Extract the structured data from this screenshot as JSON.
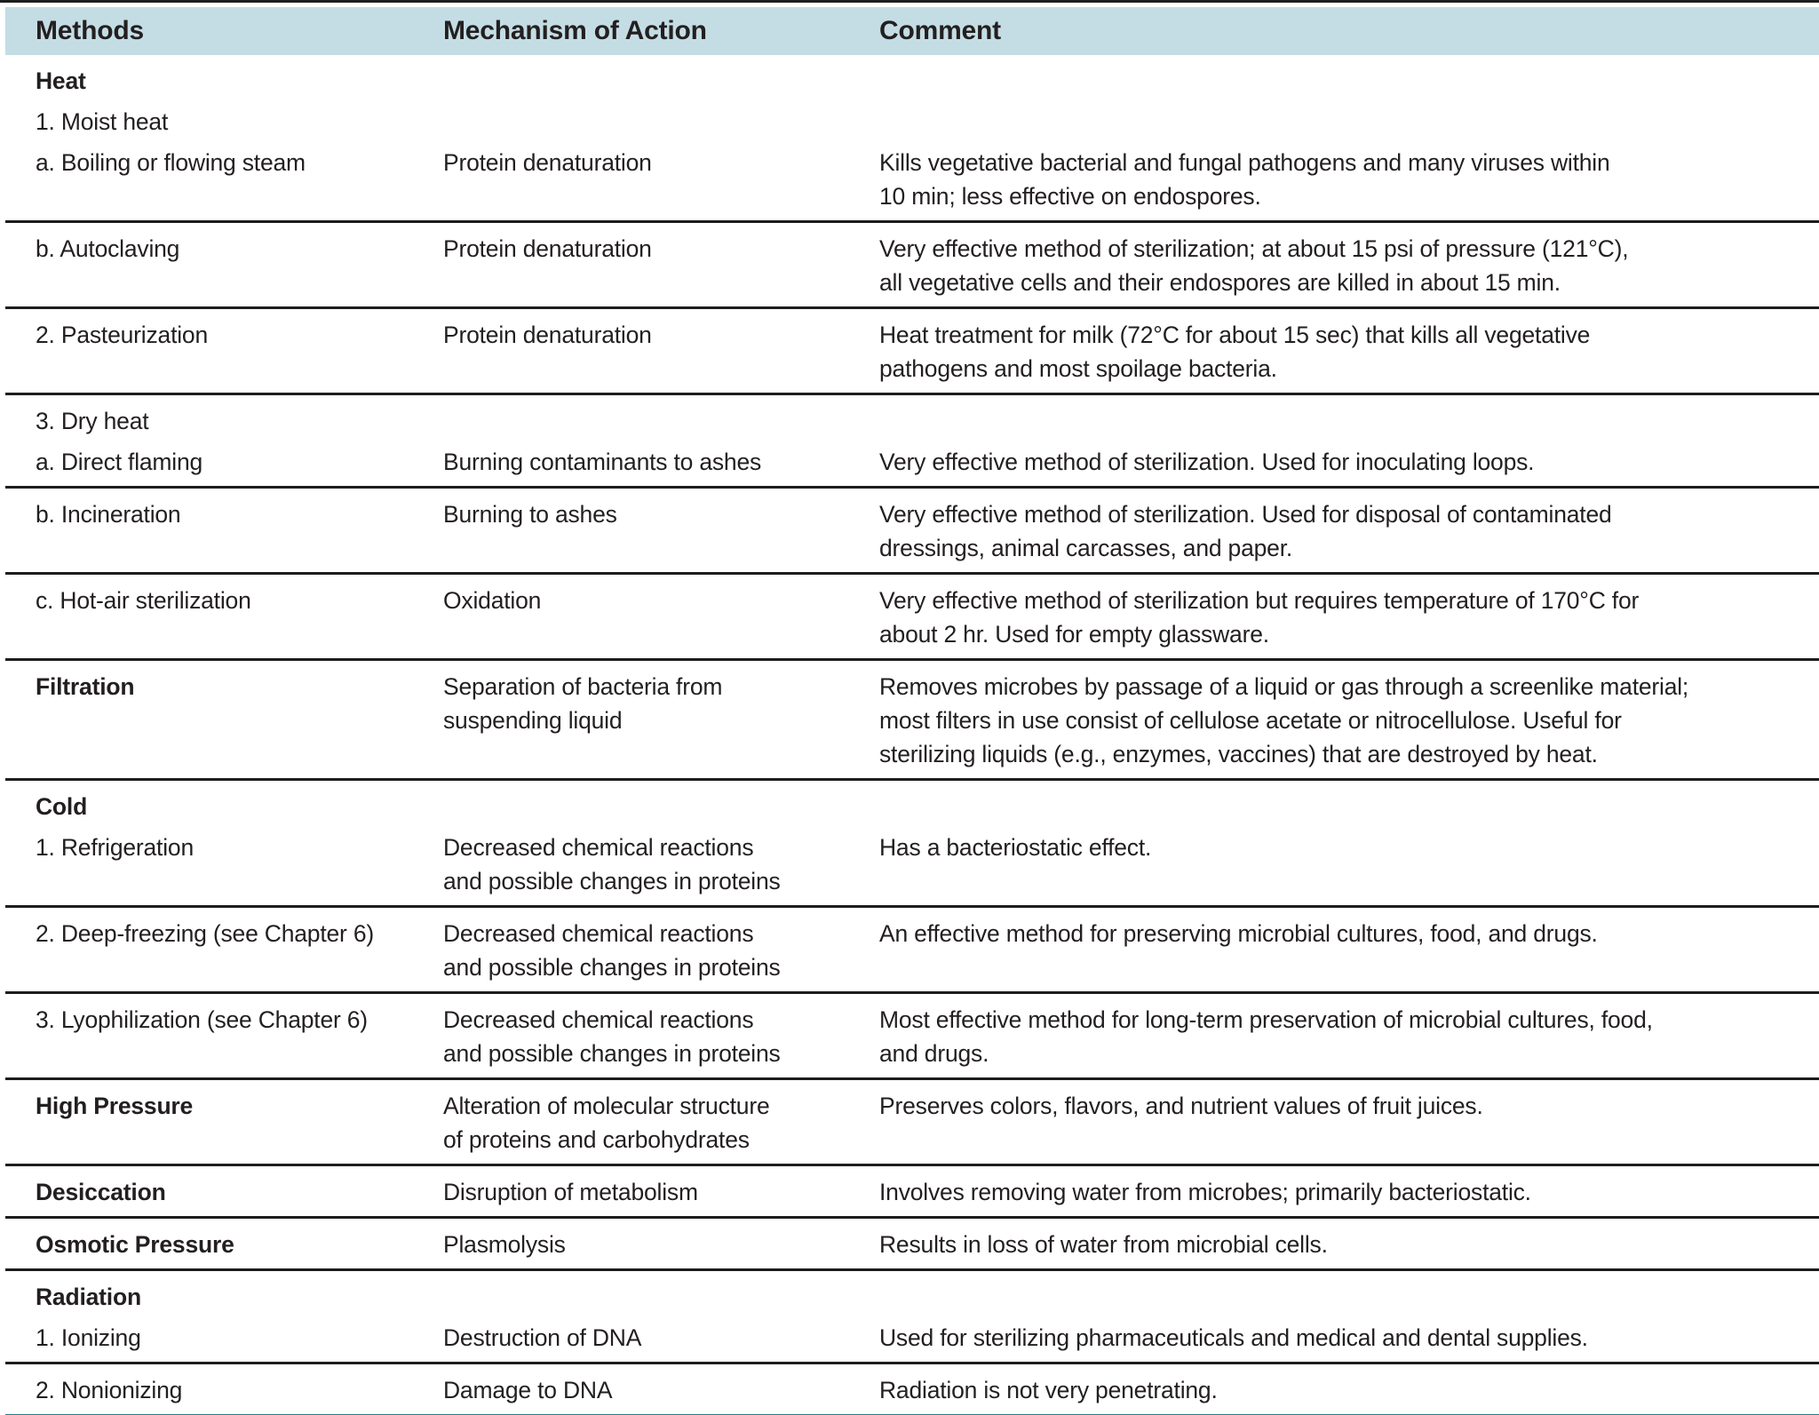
{
  "header": {
    "methods": "Methods",
    "mechanism": "Mechanism of Action",
    "comment": "Comment"
  },
  "colors": {
    "header_bg": "#c4dde4",
    "rule": "#1d1d1b",
    "accent_teal": "#1f7f8e",
    "text": "#231f20"
  },
  "rows": [
    {
      "lines": [
        {
          "method": "Heat",
          "bold": true
        },
        {
          "method": "1. Moist heat"
        },
        {
          "method": "a. Boiling or flowing steam",
          "mechanism": "Protein denaturation",
          "comment": "Kills vegetative bacterial and fungal pathogens and many viruses within\n10 min; less effective on endospores."
        }
      ]
    },
    {
      "lines": [
        {
          "method": "b. Autoclaving",
          "mechanism": "Protein denaturation",
          "comment": "Very effective method of sterilization; at about 15 psi of pressure (121°C),\nall vegetative cells and their endospores are killed in about 15 min."
        }
      ]
    },
    {
      "lines": [
        {
          "method": "2. Pasteurization",
          "mechanism": "Protein denaturation",
          "comment": "Heat treatment for milk (72°C for about 15 sec) that kills all vegetative\npathogens and most spoilage bacteria."
        }
      ]
    },
    {
      "lines": [
        {
          "method": "3. Dry heat"
        },
        {
          "method": "a. Direct flaming",
          "mechanism": "Burning contaminants to ashes",
          "comment": "Very effective method of sterilization. Used for inoculating loops."
        }
      ]
    },
    {
      "lines": [
        {
          "method": "b. Incineration",
          "mechanism": "Burning to ashes",
          "comment": "Very effective method of sterilization. Used for disposal of contaminated\ndressings, animal carcasses, and paper."
        }
      ]
    },
    {
      "lines": [
        {
          "method": "c. Hot-air sterilization",
          "mechanism": "Oxidation",
          "comment": "Very effective method of sterilization but requires temperature of 170°C for\nabout 2 hr. Used for empty glassware."
        }
      ]
    },
    {
      "lines": [
        {
          "method": "Filtration",
          "bold": true,
          "mechanism": "Separation of bacteria from\nsuspending liquid",
          "comment": "Removes microbes by passage of a liquid or gas through a screenlike material;\nmost filters in use consist of cellulose acetate or nitrocellulose. Useful for\nsterilizing liquids (e.g., enzymes, vaccines) that are destroyed by heat."
        }
      ]
    },
    {
      "lines": [
        {
          "method": "Cold",
          "bold": true
        },
        {
          "method": "1. Refrigeration",
          "mechanism": "Decreased chemical reactions\nand possible changes in proteins",
          "comment": "Has a bacteriostatic effect."
        }
      ]
    },
    {
      "lines": [
        {
          "method": "2. Deep-freezing (see Chapter 6)",
          "mechanism": "Decreased chemical reactions\nand possible changes in proteins",
          "comment": "An effective method for preserving microbial cultures, food, and drugs."
        }
      ]
    },
    {
      "lines": [
        {
          "method": "3. Lyophilization (see Chapter 6)",
          "mechanism": "Decreased chemical reactions\nand possible changes in proteins",
          "comment": "Most effective method for long-term preservation of microbial cultures, food,\nand drugs."
        }
      ]
    },
    {
      "lines": [
        {
          "method": "High Pressure",
          "bold": true,
          "mechanism": "Alteration of molecular structure\nof proteins and carbohydrates",
          "comment": "Preserves colors, flavors, and nutrient values of fruit juices."
        }
      ]
    },
    {
      "lines": [
        {
          "method": "Desiccation",
          "bold": true,
          "mechanism": "Disruption of metabolism",
          "comment": "Involves removing water from microbes; primarily bacteriostatic."
        }
      ]
    },
    {
      "lines": [
        {
          "method": "Osmotic Pressure",
          "bold": true,
          "mechanism": "Plasmolysis",
          "comment": "Results in loss of water from microbial cells."
        }
      ]
    },
    {
      "lines": [
        {
          "method": "Radiation",
          "bold": true
        },
        {
          "method": "1. Ionizing",
          "mechanism": "Destruction of DNA",
          "comment": "Used for sterilizing pharmaceuticals and medical and dental supplies."
        }
      ]
    },
    {
      "lines": [
        {
          "method": "2. Nonionizing",
          "mechanism": "Damage to DNA",
          "comment": "Radiation is not very penetrating."
        }
      ]
    }
  ]
}
